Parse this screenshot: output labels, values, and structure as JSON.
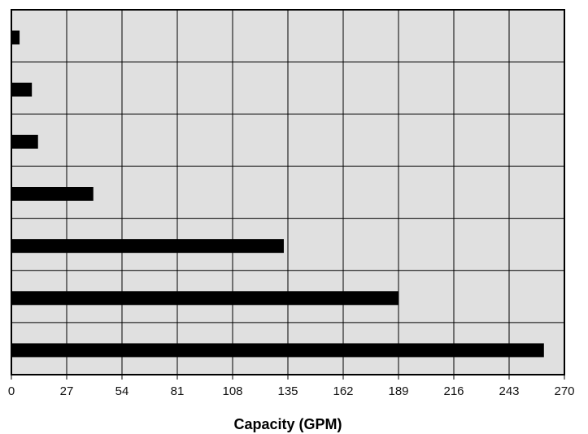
{
  "chart_data": {
    "type": "bar",
    "orientation": "horizontal",
    "title": "",
    "xlabel": "Capacity (GPM)",
    "ylabel": "",
    "xlim": [
      0,
      270
    ],
    "xticks": [
      "0",
      "27",
      "54",
      "81",
      "108",
      "135",
      "162",
      "189",
      "216",
      "243",
      "270"
    ],
    "grid": true,
    "legend": "none",
    "categories": [
      "",
      "",
      "",
      "",
      "",
      "",
      ""
    ],
    "values": [
      4,
      10,
      13,
      40,
      133,
      189,
      260
    ],
    "colors": {
      "plot_background": "#e0e0e0",
      "bar": "#000000",
      "grid": "#000000"
    }
  }
}
